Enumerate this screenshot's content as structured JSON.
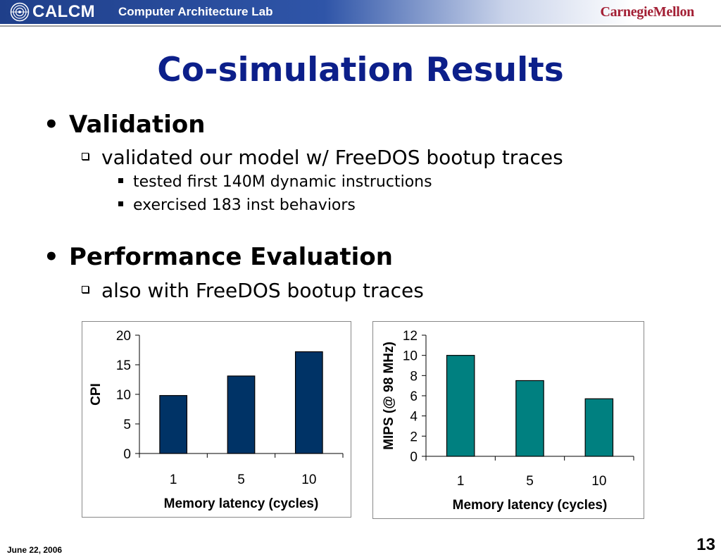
{
  "header": {
    "logo": "CALCM",
    "lab": "Computer Architecture Lab",
    "university": "CarnegieMellon"
  },
  "title": "Co-simulation Results",
  "bullets": [
    {
      "text": "Validation",
      "subs": [
        {
          "text": "validated our model w/ FreeDOS bootup traces",
          "subs": [
            "tested first 140M dynamic instructions",
            "exercised 183 inst behaviors"
          ]
        }
      ]
    },
    {
      "text": "Performance Evaluation",
      "subs": [
        {
          "text": "also with FreeDOS bootup traces",
          "subs": []
        }
      ]
    }
  ],
  "chart_data": [
    {
      "type": "bar",
      "categories": [
        "1",
        "5",
        "10"
      ],
      "values": [
        9.8,
        13.1,
        17.2
      ],
      "xlabel": "Memory latency (cycles)",
      "ylabel": "CPI",
      "ylim": [
        0,
        20
      ],
      "yticks": [
        0,
        5,
        10,
        15,
        20
      ],
      "color": "#003366",
      "grid": false
    },
    {
      "type": "bar",
      "categories": [
        "1",
        "5",
        "10"
      ],
      "values": [
        10.0,
        7.5,
        5.7
      ],
      "xlabel": "Memory latency (cycles)",
      "ylabel": "MIPS (@ 98 MHz)",
      "ylim": [
        0,
        12
      ],
      "yticks": [
        0,
        2,
        4,
        6,
        8,
        10,
        12
      ],
      "color": "#008080",
      "grid": false
    }
  ],
  "footer": {
    "date": "June 22, 2006",
    "page": "13"
  }
}
